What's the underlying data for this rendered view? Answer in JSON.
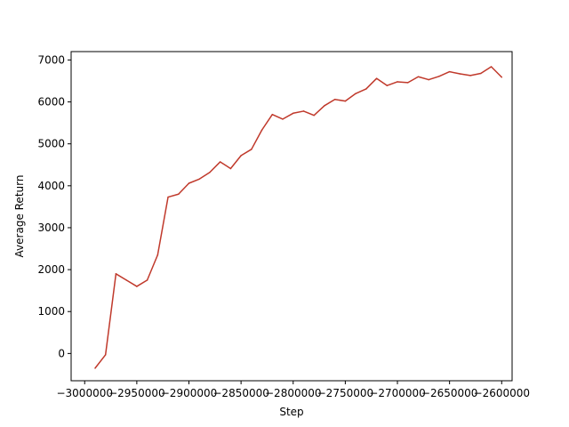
{
  "chart_data": {
    "type": "line",
    "title": "",
    "xlabel": "Step",
    "ylabel": "Average Return",
    "xlim": [
      -3013000,
      -2590000
    ],
    "ylim": [
      -650,
      7200
    ],
    "grid": false,
    "legend": "none",
    "xticks": [
      {
        "value": -3000000,
        "label": "−3000000"
      },
      {
        "value": -2950000,
        "label": "−2950000"
      },
      {
        "value": -2900000,
        "label": "−2900000"
      },
      {
        "value": -2850000,
        "label": "−2850000"
      },
      {
        "value": -2800000,
        "label": "−2800000"
      },
      {
        "value": -2750000,
        "label": "−2750000"
      },
      {
        "value": -2700000,
        "label": "−2700000"
      },
      {
        "value": -2650000,
        "label": "−2650000"
      },
      {
        "value": -2600000,
        "label": "−2600000"
      }
    ],
    "yticks": [
      {
        "value": 0,
        "label": "0"
      },
      {
        "value": 1000,
        "label": "1000"
      },
      {
        "value": 2000,
        "label": "2000"
      },
      {
        "value": 3000,
        "label": "3000"
      },
      {
        "value": 4000,
        "label": "4000"
      },
      {
        "value": 5000,
        "label": "5000"
      },
      {
        "value": 6000,
        "label": "6000"
      },
      {
        "value": 7000,
        "label": "7000"
      }
    ],
    "series": [
      {
        "name": "average-return",
        "color": "#c0392b",
        "x": [
          -2990000,
          -2980000,
          -2970000,
          -2960000,
          -2950000,
          -2940000,
          -2930000,
          -2920000,
          -2910000,
          -2900000,
          -2890000,
          -2880000,
          -2870000,
          -2860000,
          -2850000,
          -2840000,
          -2830000,
          -2820000,
          -2810000,
          -2800000,
          -2790000,
          -2780000,
          -2770000,
          -2760000,
          -2750000,
          -2740000,
          -2730000,
          -2720000,
          -2710000,
          -2700000,
          -2690000,
          -2680000,
          -2670000,
          -2660000,
          -2650000,
          -2640000,
          -2630000,
          -2620000,
          -2610000,
          -2600000
        ],
        "y": [
          -350,
          -30,
          1900,
          1750,
          1600,
          1750,
          2350,
          3730,
          3800,
          4060,
          4160,
          4320,
          4570,
          4410,
          4720,
          4870,
          5330,
          5700,
          5590,
          5730,
          5780,
          5680,
          5910,
          6060,
          6020,
          6200,
          6310,
          6560,
          6390,
          6480,
          6460,
          6600,
          6530,
          6610,
          6720,
          6670,
          6630,
          6680,
          6840,
          6590
        ]
      }
    ]
  }
}
